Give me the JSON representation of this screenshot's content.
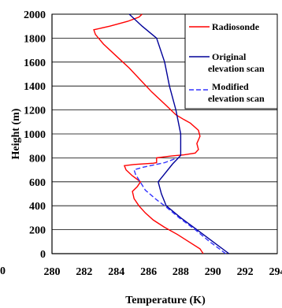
{
  "chart_data": {
    "type": "line",
    "title": "",
    "xlabel": "Temperature (K)",
    "ylabel": "Height (m)",
    "xlim": [
      280,
      294
    ],
    "ylim": [
      0,
      2000
    ],
    "x_ticks": [
      "280",
      "282",
      "284",
      "286",
      "288",
      "290",
      "292",
      "294"
    ],
    "y_ticks": [
      "0",
      "200",
      "400",
      "600",
      "800",
      "1000",
      "1200",
      "1400",
      "1600",
      "1800",
      "2000"
    ],
    "grid": "horizontal",
    "legend_position": "top-right",
    "stray_label": "0",
    "series": [
      {
        "name": "Radiosonde",
        "color": "#ff0000",
        "style": "solid",
        "points": [
          [
            289.4,
            0
          ],
          [
            289.2,
            40
          ],
          [
            288.5,
            100
          ],
          [
            287.8,
            160
          ],
          [
            287.0,
            220
          ],
          [
            286.3,
            280
          ],
          [
            285.8,
            340
          ],
          [
            285.4,
            400
          ],
          [
            285.1,
            460
          ],
          [
            285.0,
            520
          ],
          [
            285.3,
            560
          ],
          [
            285.5,
            600
          ],
          [
            285.0,
            650
          ],
          [
            284.6,
            700
          ],
          [
            284.5,
            735
          ],
          [
            285.1,
            745
          ],
          [
            286.3,
            755
          ],
          [
            286.5,
            760
          ],
          [
            286.5,
            800
          ],
          [
            287.4,
            815
          ],
          [
            288.2,
            825
          ],
          [
            288.9,
            840
          ],
          [
            289.1,
            870
          ],
          [
            289.0,
            920
          ],
          [
            289.2,
            980
          ],
          [
            289.1,
            1030
          ],
          [
            288.6,
            1090
          ],
          [
            288.2,
            1120
          ],
          [
            287.7,
            1160
          ],
          [
            287.0,
            1250
          ],
          [
            286.2,
            1350
          ],
          [
            285.5,
            1450
          ],
          [
            284.8,
            1550
          ],
          [
            284.0,
            1650
          ],
          [
            283.2,
            1750
          ],
          [
            282.7,
            1830
          ],
          [
            282.6,
            1870
          ],
          [
            283.6,
            1900
          ],
          [
            284.7,
            1940
          ],
          [
            285.4,
            1975
          ],
          [
            285.6,
            2000
          ]
        ]
      },
      {
        "name": "Original elevation scan",
        "color": "#000099",
        "style": "solid",
        "points": [
          [
            291.0,
            0
          ],
          [
            290.0,
            100
          ],
          [
            289.0,
            200
          ],
          [
            288.0,
            300
          ],
          [
            287.1,
            400
          ],
          [
            286.8,
            500
          ],
          [
            286.6,
            600
          ],
          [
            286.9,
            650
          ],
          [
            287.5,
            750
          ],
          [
            288.0,
            820
          ],
          [
            288.0,
            1000
          ],
          [
            287.7,
            1200
          ],
          [
            287.3,
            1400
          ],
          [
            287.0,
            1600
          ],
          [
            286.5,
            1800
          ],
          [
            285.6,
            1900
          ],
          [
            284.8,
            2000
          ]
        ]
      },
      {
        "name": "Modified elevation scan",
        "color": "#3333ff",
        "style": "dashed",
        "points": [
          [
            290.8,
            0
          ],
          [
            289.8,
            100
          ],
          [
            288.9,
            200
          ],
          [
            287.9,
            300
          ],
          [
            287.0,
            400
          ],
          [
            286.5,
            450
          ],
          [
            285.8,
            530
          ],
          [
            285.2,
            660
          ],
          [
            285.1,
            700
          ],
          [
            285.6,
            720
          ],
          [
            287.0,
            760
          ],
          [
            287.8,
            800
          ]
        ]
      }
    ]
  }
}
